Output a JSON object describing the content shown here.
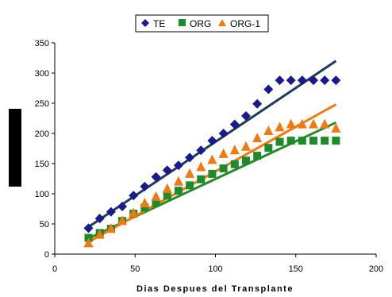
{
  "chart_data": {
    "type": "scatter",
    "xlabel": "Dias Despues del Transplante",
    "ylabel": "",
    "xlim": [
      0,
      200
    ],
    "ylim": [
      0,
      350
    ],
    "xticks": [
      0,
      50,
      100,
      150,
      200
    ],
    "yticks": [
      0,
      50,
      100,
      150,
      200,
      250,
      300,
      350
    ],
    "grid": false,
    "legend_position": "top-center",
    "series": [
      {
        "name": "TE",
        "color": "#1a1a8c",
        "marker": "diamond",
        "x": [
          21,
          28,
          35,
          42,
          49,
          56,
          63,
          70,
          77,
          84,
          91,
          98,
          105,
          112,
          119,
          126,
          133,
          140,
          147,
          154,
          161,
          168,
          175
        ],
        "y": [
          43,
          59,
          70,
          79,
          97,
          112,
          128,
          139,
          147,
          160,
          172,
          188,
          200,
          215,
          229,
          249,
          273,
          288,
          288,
          288,
          288,
          288,
          288
        ],
        "trend": {
          "x": [
            21,
            175
          ],
          "y": [
            45,
            320
          ],
          "color": "#1f3b5c"
        }
      },
      {
        "name": "ORG",
        "color": "#1f8a2a",
        "marker": "square",
        "x": [
          21,
          28,
          35,
          42,
          49,
          56,
          63,
          70,
          77,
          84,
          91,
          98,
          105,
          112,
          119,
          126,
          133,
          140,
          147,
          154,
          161,
          168,
          175
        ],
        "y": [
          27,
          35,
          42,
          55,
          67,
          77,
          85,
          97,
          105,
          114,
          124,
          133,
          142,
          149,
          155,
          163,
          176,
          186,
          188,
          188,
          188,
          188,
          188
        ],
        "trend": {
          "x": [
            21,
            175
          ],
          "y": [
            26,
            218
          ],
          "color": "#2a8a2a"
        }
      },
      {
        "name": "ORG-1",
        "color": "#f07a10",
        "marker": "triangle",
        "x": [
          21,
          28,
          35,
          42,
          49,
          56,
          63,
          70,
          77,
          84,
          91,
          98,
          105,
          112,
          119,
          126,
          133,
          140,
          147,
          154,
          161,
          168,
          175
        ],
        "y": [
          18,
          32,
          42,
          55,
          68,
          84,
          95,
          108,
          120,
          133,
          144,
          156,
          166,
          172,
          178,
          192,
          204,
          210,
          215,
          215,
          215,
          215,
          208
        ],
        "trend": {
          "x": [
            21,
            175
          ],
          "y": [
            20,
            248
          ],
          "color": "#f07a10"
        }
      }
    ]
  }
}
